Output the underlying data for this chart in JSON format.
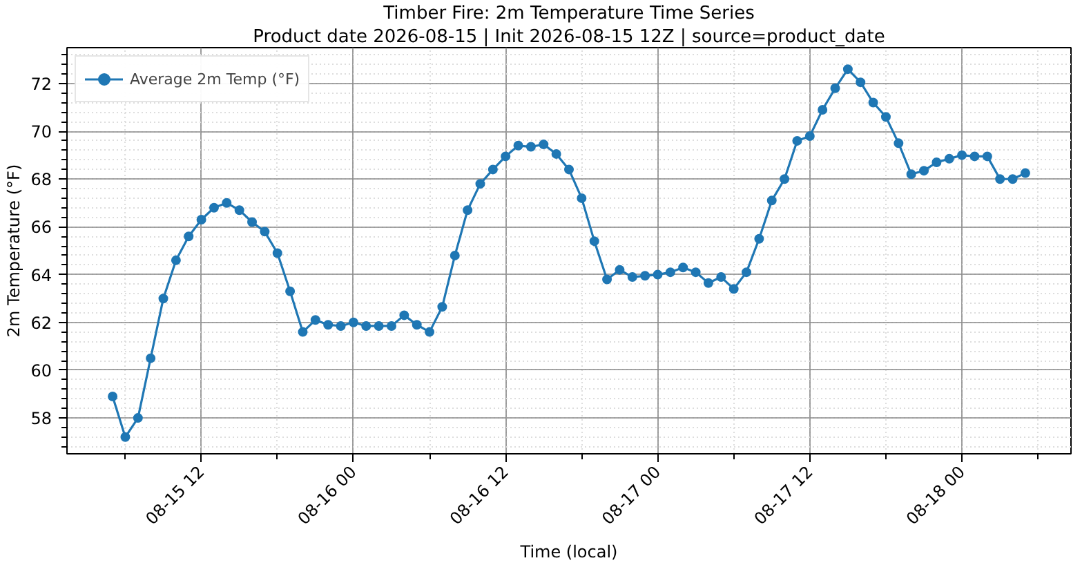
{
  "chart_data": {
    "type": "line",
    "title": "Timber Fire: 2m Temperature Time Series",
    "subtitle": "Product date 2026-08-15 | Init 2026-08-15 12Z | source=product_date",
    "xlabel": "Time (local)",
    "ylabel": "2m Temperature (°F)",
    "series": [
      {
        "name": "Average 2m Temp (°F)",
        "color": "#1f77b4",
        "x": [
          "2026-08-15T05:00",
          "2026-08-15T06:00",
          "2026-08-15T07:00",
          "2026-08-15T08:00",
          "2026-08-15T09:00",
          "2026-08-15T10:00",
          "2026-08-15T11:00",
          "2026-08-15T12:00",
          "2026-08-15T13:00",
          "2026-08-15T14:00",
          "2026-08-15T15:00",
          "2026-08-15T16:00",
          "2026-08-15T17:00",
          "2026-08-15T18:00",
          "2026-08-15T19:00",
          "2026-08-15T20:00",
          "2026-08-15T21:00",
          "2026-08-15T22:00",
          "2026-08-15T23:00",
          "2026-08-16T00:00",
          "2026-08-16T01:00",
          "2026-08-16T02:00",
          "2026-08-16T03:00",
          "2026-08-16T04:00",
          "2026-08-16T05:00",
          "2026-08-16T06:00",
          "2026-08-16T07:00",
          "2026-08-16T08:00",
          "2026-08-16T09:00",
          "2026-08-16T10:00",
          "2026-08-16T11:00",
          "2026-08-16T12:00",
          "2026-08-16T13:00",
          "2026-08-16T14:00",
          "2026-08-16T15:00",
          "2026-08-16T16:00",
          "2026-08-16T17:00",
          "2026-08-16T18:00",
          "2026-08-16T19:00",
          "2026-08-16T20:00",
          "2026-08-16T21:00",
          "2026-08-16T22:00",
          "2026-08-16T23:00",
          "2026-08-17T00:00",
          "2026-08-17T01:00",
          "2026-08-17T02:00",
          "2026-08-17T03:00",
          "2026-08-17T04:00",
          "2026-08-17T05:00",
          "2026-08-17T06:00",
          "2026-08-17T07:00",
          "2026-08-17T08:00",
          "2026-08-17T09:00",
          "2026-08-17T10:00",
          "2026-08-17T11:00",
          "2026-08-17T12:00",
          "2026-08-17T13:00",
          "2026-08-17T14:00",
          "2026-08-17T15:00",
          "2026-08-17T16:00",
          "2026-08-17T17:00",
          "2026-08-17T18:00",
          "2026-08-17T19:00",
          "2026-08-17T20:00",
          "2026-08-17T21:00",
          "2026-08-17T22:00",
          "2026-08-17T23:00",
          "2026-08-18T00:00",
          "2026-08-18T01:00",
          "2026-08-18T02:00",
          "2026-08-18T03:00",
          "2026-08-18T04:00",
          "2026-08-18T05:00"
        ],
        "values": [
          58.9,
          57.2,
          58.0,
          60.5,
          63.0,
          64.6,
          65.6,
          66.3,
          66.8,
          67.0,
          66.7,
          66.2,
          65.8,
          64.9,
          63.3,
          61.6,
          62.1,
          61.9,
          61.85,
          62.0,
          61.85,
          61.85,
          61.85,
          62.3,
          61.9,
          61.6,
          62.65,
          64.8,
          66.7,
          67.8,
          68.4,
          68.95,
          69.4,
          69.35,
          69.45,
          69.05,
          68.4,
          67.2,
          65.4,
          63.8,
          64.2,
          63.9,
          63.95,
          64.0,
          64.1,
          64.3,
          64.1,
          63.65,
          63.9,
          63.4,
          64.1,
          65.5,
          67.1,
          68.0,
          69.6,
          69.8,
          70.9,
          71.8,
          72.6,
          72.05,
          71.2,
          70.6,
          69.5,
          68.2,
          68.35,
          68.7,
          68.85,
          69.0,
          68.95,
          68.95,
          68.0,
          68.0,
          68.25
        ]
      }
    ],
    "xlim": [
      "2026-08-15T01:24",
      "2026-08-18T08:36"
    ],
    "xticks": [
      {
        "value": "2026-08-15T12:00",
        "label": "08-15 12"
      },
      {
        "value": "2026-08-16T00:00",
        "label": "08-16 00"
      },
      {
        "value": "2026-08-16T12:00",
        "label": "08-16 12"
      },
      {
        "value": "2026-08-17T00:00",
        "label": "08-17 00"
      },
      {
        "value": "2026-08-17T12:00",
        "label": "08-17 12"
      },
      {
        "value": "2026-08-18T00:00",
        "label": "08-18 00"
      }
    ],
    "ylim": [
      56.5,
      73.5
    ],
    "yticks": [
      58,
      60,
      62,
      64,
      66,
      68,
      70,
      72
    ],
    "grid": true,
    "legend": "top left",
    "marker": "circle",
    "line_style": "solid"
  }
}
